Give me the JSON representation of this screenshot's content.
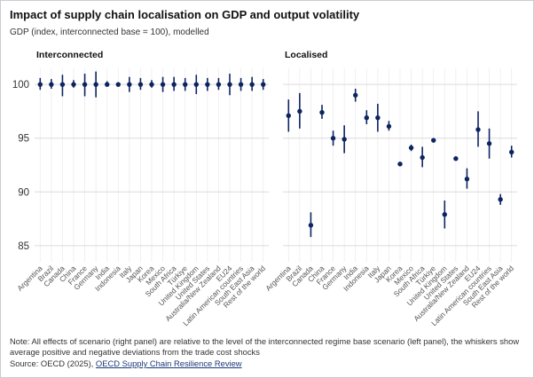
{
  "title": "Impact of supply chain localisation on GDP and output volatility",
  "subtitle": "GDP (index, interconnected base = 100), modelled",
  "note": "Note: All effects of scenario (right panel) are relative to the level of the interconnected regime base scenario (left panel), the whiskers show average positive and negative deviations from the trade cost shocks",
  "source": {
    "prefix": "Source: OECD (2025), ",
    "link_text": "OECD Supply Chain Resilience Review"
  },
  "colors": {
    "point": "#0d2461",
    "grid": "#dcdcdc",
    "panel_bg": "#ffffff"
  },
  "chart_data": [
    {
      "type": "scatter",
      "title": "Interconnected",
      "xlabel": "",
      "ylabel": "",
      "ylim": [
        83.5,
        101.5
      ],
      "yticks": [
        85,
        90,
        95,
        100
      ],
      "grid": true,
      "categories": [
        "Argentina",
        "Brazil",
        "Canada",
        "China",
        "France",
        "Germany",
        "India",
        "Indonesia",
        "Italy",
        "Japan",
        "Korea",
        "Mexico",
        "South Africa",
        "Türkiye",
        "United Kingdom",
        "United States",
        "Australia/New Zealand",
        "EU24",
        "Latin American countries",
        "South East Asia",
        "Rest of the world"
      ],
      "values": [
        100,
        100,
        100,
        100,
        100,
        100,
        100,
        100,
        100,
        100,
        100,
        100,
        100,
        100,
        100,
        100,
        100,
        100,
        100,
        100,
        100
      ],
      "low": [
        99.5,
        99.6,
        98.9,
        99.7,
        98.9,
        98.8,
        99.8,
        99.8,
        99.3,
        99.5,
        99.7,
        99.3,
        99.4,
        99.4,
        99.1,
        99.4,
        99.5,
        99.0,
        99.4,
        99.4,
        99.5
      ],
      "high": [
        100.6,
        100.5,
        100.9,
        100.4,
        101.0,
        101.2,
        100.3,
        100.2,
        100.7,
        100.6,
        100.4,
        100.7,
        100.7,
        100.6,
        100.9,
        100.6,
        100.6,
        101.0,
        100.6,
        100.7,
        100.5
      ]
    },
    {
      "type": "scatter",
      "title": "Localised",
      "xlabel": "",
      "ylabel": "",
      "ylim": [
        83.5,
        101.5
      ],
      "yticks": [
        85,
        90,
        95,
        100
      ],
      "grid": true,
      "categories": [
        "Argentina",
        "Brazil",
        "Canada",
        "China",
        "France",
        "Germany",
        "India",
        "Indonesia",
        "Italy",
        "Japan",
        "Korea",
        "Mexico",
        "South Africa",
        "Türkiye",
        "United Kingdom",
        "United States",
        "Australia/New Zealand",
        "EU24",
        "Latin American countries",
        "South East Asia",
        "Rest of the world"
      ],
      "values": [
        97.1,
        97.5,
        86.9,
        97.4,
        95.0,
        94.9,
        99.0,
        96.9,
        96.9,
        96.1,
        92.6,
        94.1,
        93.2,
        94.8,
        87.9,
        93.1,
        91.2,
        95.8,
        94.5,
        89.3,
        93.7
      ],
      "low": [
        95.6,
        95.9,
        85.8,
        96.8,
        94.3,
        93.6,
        98.4,
        96.3,
        95.6,
        95.7,
        92.5,
        93.8,
        92.3,
        94.6,
        86.6,
        93.0,
        90.3,
        94.2,
        93.1,
        88.8,
        93.2
      ],
      "high": [
        98.6,
        99.2,
        88.1,
        98.1,
        95.7,
        96.2,
        99.6,
        97.6,
        98.2,
        96.6,
        92.7,
        94.4,
        94.2,
        95.0,
        89.2,
        93.2,
        92.2,
        97.5,
        95.9,
        89.8,
        94.3
      ]
    }
  ]
}
